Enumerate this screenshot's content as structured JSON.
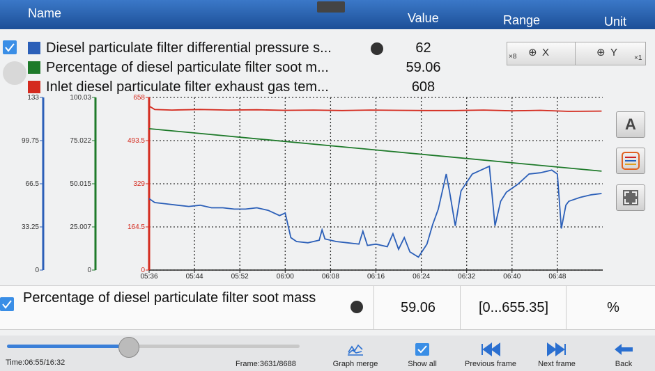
{
  "header": {
    "columns": [
      "Name",
      "Value",
      "Range",
      "Unit"
    ]
  },
  "zoom": {
    "x_factor": "×8",
    "x_label": "X",
    "y_label": "Y",
    "y_factor": "×1"
  },
  "side_buttons": {
    "text_button": "A"
  },
  "chart_data": {
    "type": "line",
    "xlim": [
      336,
      416
    ],
    "xticks": [
      {
        "value": 336,
        "label": "05:36"
      },
      {
        "value": 344,
        "label": "05:44"
      },
      {
        "value": 352,
        "label": "05:52"
      },
      {
        "value": 360,
        "label": "06:00"
      },
      {
        "value": 368,
        "label": "06:08"
      },
      {
        "value": 376,
        "label": "06:16"
      },
      {
        "value": 384,
        "label": "06:24"
      },
      {
        "value": 392,
        "label": "06:32"
      },
      {
        "value": 400,
        "label": "06:40"
      },
      {
        "value": 408,
        "label": "06:48"
      }
    ],
    "grid": true,
    "series": [
      {
        "name": "Diesel particulate filter differential pressure s...",
        "current": 62,
        "color": "#2b5fb8",
        "ylim": [
          0,
          133
        ],
        "yticks": [
          0,
          33.25,
          66.5,
          99.75,
          133
        ],
        "x": [
          336,
          337,
          339,
          341,
          343,
          345,
          347,
          349,
          351,
          353,
          355,
          357,
          359,
          360,
          361,
          362,
          364,
          366,
          366.5,
          367,
          369,
          371,
          373,
          373.7,
          374.5,
          376,
          378,
          379,
          380,
          381,
          382,
          383.5,
          385,
          386,
          387,
          388.4,
          389,
          390,
          391,
          393,
          394,
          396,
          397,
          398,
          399,
          401,
          403,
          405,
          407,
          408,
          408.7,
          409.5,
          410,
          412,
          414,
          415.8
        ],
        "values": [
          55,
          52,
          51,
          50,
          49,
          50,
          48,
          48,
          47,
          47,
          48,
          46,
          42,
          44,
          25,
          22,
          21,
          23,
          31,
          24,
          22,
          21,
          20,
          30,
          19,
          20,
          18,
          28,
          16,
          25,
          14,
          10,
          20,
          35,
          47,
          74,
          60,
          34,
          61,
          74,
          76,
          80,
          34,
          53,
          60,
          66,
          74,
          75,
          77,
          74,
          32,
          50,
          53,
          56,
          58,
          59
        ]
      },
      {
        "name": "Percentage of diesel particulate filter soot m...",
        "current": 59.06,
        "color": "#1e7a2a",
        "ylim": [
          0,
          100.03
        ],
        "yticks": [
          0,
          25.007,
          50.015,
          75.022,
          100.03
        ],
        "x": [
          336,
          415.8
        ],
        "values": [
          81.9,
          57.3
        ]
      },
      {
        "name": "Inlet diesel particulate filter exhaust gas tem...",
        "current": 608,
        "color": "#d42a1e",
        "ylim": [
          0,
          658
        ],
        "yticks": [
          0,
          164.5,
          329,
          493.5,
          658
        ],
        "x": [
          336,
          337,
          340,
          345,
          350,
          355,
          360,
          365,
          370,
          375,
          380,
          385,
          390,
          395,
          400,
          405,
          410,
          415.8
        ],
        "values": [
          625,
          612,
          610,
          612,
          610,
          611,
          609,
          610,
          608,
          610,
          609,
          608,
          608,
          610,
          607,
          609,
          605,
          606
        ]
      }
    ]
  },
  "detail": {
    "name": "Percentage of diesel particulate filter soot mass",
    "value": 59.06,
    "range": "[0...655.35]",
    "unit": "%"
  },
  "status": {
    "time": "Time:06:55/16:32",
    "frame": "Frame:3631/8688"
  },
  "toolbar": [
    "Graph merge",
    "Show all",
    "Previous frame",
    "Next frame",
    "Back"
  ]
}
